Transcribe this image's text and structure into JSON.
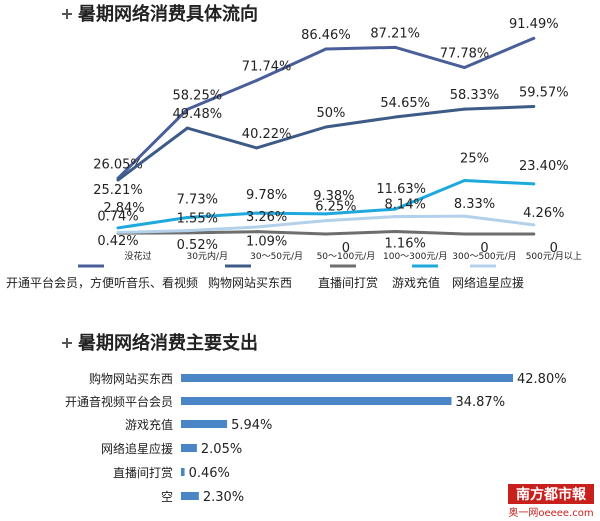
{
  "chart_data": [
    {
      "type": "line",
      "title": "暑期网络消费具体流向",
      "categories": [
        "没花过",
        "30元内/月",
        "30～50元/月",
        "50～100元/月",
        "100～300元/月",
        "300～500元/月",
        "500元/月以上"
      ],
      "series": [
        {
          "name": "开通平台会员，方便听音乐、看视频",
          "color": "#4a5f9a",
          "values": [
            26.05,
            58.25,
            71.74,
            86.46,
            87.21,
            77.78,
            91.49
          ],
          "labels": [
            "26.05%",
            "58.25%",
            "71.74%",
            "86.46%",
            "87.21%",
            "77.78%",
            "91.49%"
          ]
        },
        {
          "name": "购物网站买东西",
          "color": "#3c5b86",
          "values": [
            25.21,
            49.48,
            40.22,
            50,
            54.65,
            58.33,
            59.57
          ],
          "labels": [
            "25.21%",
            "49.48%",
            "40.22%",
            "50%",
            "54.65%",
            "58.33%",
            "59.57%"
          ]
        },
        {
          "name": "直播间打赏",
          "color": "#6e6e6e",
          "values": [
            0.42,
            0.52,
            1.09,
            0,
            1.16,
            0,
            0
          ],
          "labels": [
            "0.42%",
            "0.52%",
            "1.09%",
            "0",
            "1.16%",
            "0",
            "0"
          ]
        },
        {
          "name": "游戏充值",
          "color": "#1fa8dc",
          "values": [
            2.84,
            7.73,
            9.78,
            9.38,
            11.63,
            25,
            23.4
          ],
          "labels": [
            "2.84%",
            "7.73%",
            "9.78%",
            "9.38%",
            "11.63%",
            "25%",
            "23.40%"
          ]
        },
        {
          "name": "网络追星应援",
          "color": "#b3d1ea",
          "values": [
            0.74,
            1.55,
            3.26,
            6.25,
            8.14,
            8.33,
            4.26
          ],
          "labels": [
            "0.74%",
            "1.55%",
            "3.26%",
            "6.25%",
            "8.14%",
            "8.33%",
            "4.26%"
          ]
        }
      ]
    },
    {
      "type": "bar",
      "orientation": "horizontal",
      "title": "暑期网络消费主要支出",
      "color": "#4a86c5",
      "categories": [
        "购物网站买东西",
        "开通音视频平台会员",
        "游戏充值",
        "网络追星应援",
        "直播间打赏",
        "空"
      ],
      "values": [
        42.8,
        34.87,
        5.94,
        2.05,
        0.46,
        2.3
      ],
      "labels": [
        "42.80%",
        "34.87%",
        "5.94%",
        "2.05%",
        "0.46%",
        "2.30%"
      ]
    }
  ],
  "logo": {
    "top": "南方都市報",
    "bottom": "奥一网oeeee.com"
  }
}
